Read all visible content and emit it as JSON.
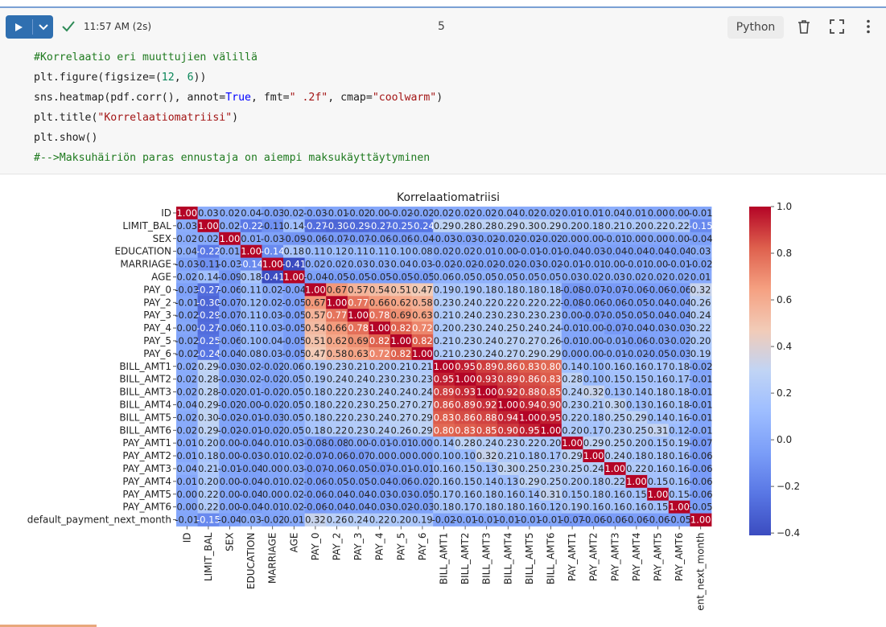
{
  "toolbar": {
    "run_icon": "play-icon",
    "chevron_icon": "chevron-down-icon",
    "status_icon": "check-icon",
    "status_time": "11:57 AM (2s)",
    "cell_number": "5",
    "language": "Python",
    "delete_icon": "trash-icon",
    "expand_icon": "expand-icon",
    "menu_icon": "more-vertical-icon"
  },
  "code": {
    "lines": [
      "#Korrelaatio eri muuttujien välillä",
      "plt.figure(figsize=(12, 6))",
      "sns.heatmap(pdf.corr(), annot=True, fmt=\" .2f\", cmap=\"coolwarm\")",
      "plt.title(\"Korrelaatiomatriisi\")",
      "plt.show()",
      "#-->Maksuhäiriön paras ennustaja on aiempi maksukäyttäytyminen"
    ]
  },
  "colors": {
    "run_button": "#2f6fb0",
    "check": "#2e8b57",
    "cmap_low": "#3b4cc0",
    "cmap_mid": "#dddddd",
    "cmap_high": "#b40426"
  },
  "chart_data": {
    "type": "heatmap",
    "title": "Korrelaatiomatriisi",
    "labels": [
      "ID",
      "LIMIT_BAL",
      "SEX",
      "EDUCATION",
      "MARRIAGE",
      "AGE",
      "PAY_0",
      "PAY_2",
      "PAY_3",
      "PAY_4",
      "PAY_5",
      "PAY_6",
      "BILL_AMT1",
      "BILL_AMT2",
      "BILL_AMT3",
      "BILL_AMT4",
      "BILL_AMT5",
      "BILL_AMT6",
      "PAY_AMT1",
      "PAY_AMT2",
      "PAY_AMT3",
      "PAY_AMT4",
      "PAY_AMT5",
      "PAY_AMT6",
      "default_payment_next_month"
    ],
    "x_tick_labels": [
      "ID",
      "LIMIT_BAL",
      "SEX",
      "EDUCATION",
      "MARRIAGE",
      "AGE",
      "PAY_0",
      "PAY_2",
      "PAY_3",
      "PAY_4",
      "PAY_5",
      "PAY_6",
      "BILL_AMT1",
      "BILL_AMT2",
      "BILL_AMT3",
      "BILL_AMT4",
      "BILL_AMT5",
      "BILL_AMT6",
      "PAY_AMT1",
      "PAY_AMT2",
      "PAY_AMT3",
      "PAY_AMT4",
      "PAY_AMT5",
      "PAY_AMT6",
      "ent_next_month"
    ],
    "colorbar_ticks": [
      1.0,
      0.8,
      0.6,
      0.4,
      0.2,
      0.0,
      -0.2,
      -0.4
    ],
    "colorbar_tick_labels": [
      "1.0",
      "0.8",
      "0.6",
      "0.4",
      "0.2",
      "0.0",
      "−0.2",
      "−0.4"
    ],
    "vmin": -0.41,
    "vmax": 1.0,
    "cmap": "coolwarm",
    "values": [
      [
        1.0,
        0.03,
        0.02,
        0.04,
        -0.03,
        0.02,
        -0.03,
        -0.01,
        -0.02,
        -0.0,
        -0.02,
        -0.02,
        0.02,
        0.02,
        0.02,
        0.04,
        0.02,
        0.02,
        0.01,
        0.01,
        0.04,
        0.01,
        0.0,
        0.0,
        -0.01
      ],
      [
        0.03,
        1.0,
        0.02,
        -0.22,
        -0.11,
        0.14,
        -0.27,
        -0.3,
        -0.29,
        -0.27,
        -0.25,
        -0.24,
        0.29,
        0.28,
        0.28,
        0.29,
        0.3,
        0.29,
        0.2,
        0.18,
        0.21,
        0.2,
        0.22,
        0.22,
        -0.15
      ],
      [
        0.02,
        0.02,
        1.0,
        0.01,
        -0.03,
        -0.09,
        -0.06,
        -0.07,
        -0.07,
        -0.06,
        -0.06,
        -0.04,
        -0.03,
        -0.03,
        -0.02,
        -0.02,
        -0.02,
        -0.02,
        -0.0,
        -0.0,
        -0.01,
        -0.0,
        -0.0,
        -0.0,
        -0.04
      ],
      [
        0.04,
        -0.22,
        0.01,
        1.0,
        -0.14,
        0.18,
        0.11,
        0.12,
        0.11,
        0.11,
        0.1,
        0.08,
        0.02,
        0.02,
        0.01,
        0.0,
        -0.01,
        -0.01,
        -0.04,
        -0.03,
        -0.04,
        -0.04,
        -0.04,
        -0.04,
        0.03
      ],
      [
        -0.03,
        -0.11,
        -0.03,
        -0.14,
        1.0,
        -0.41,
        0.02,
        0.02,
        0.03,
        0.03,
        0.04,
        0.03,
        -0.02,
        -0.02,
        -0.02,
        -0.02,
        -0.03,
        -0.02,
        -0.01,
        -0.01,
        -0.0,
        -0.01,
        -0.0,
        -0.01,
        -0.02
      ],
      [
        0.02,
        0.14,
        -0.09,
        0.18,
        -0.41,
        1.0,
        -0.04,
        -0.05,
        -0.05,
        -0.05,
        -0.05,
        -0.05,
        0.06,
        0.05,
        0.05,
        0.05,
        0.05,
        0.05,
        0.03,
        0.02,
        0.03,
        0.02,
        0.02,
        0.02,
        0.01
      ],
      [
        -0.03,
        -0.27,
        -0.06,
        0.11,
        0.02,
        -0.04,
        1.0,
        0.67,
        0.57,
        0.54,
        0.51,
        0.47,
        0.19,
        0.19,
        0.18,
        0.18,
        0.18,
        0.18,
        -0.08,
        -0.07,
        -0.07,
        -0.06,
        -0.06,
        -0.06,
        0.32
      ],
      [
        -0.01,
        -0.3,
        -0.07,
        0.12,
        0.02,
        -0.05,
        0.67,
        1.0,
        0.77,
        0.66,
        0.62,
        0.58,
        0.23,
        0.24,
        0.22,
        0.22,
        0.22,
        0.22,
        -0.08,
        -0.06,
        -0.06,
        -0.05,
        -0.04,
        -0.04,
        0.26
      ],
      [
        -0.02,
        -0.29,
        -0.07,
        0.11,
        0.03,
        -0.05,
        0.57,
        0.77,
        1.0,
        0.78,
        0.69,
        0.63,
        0.21,
        0.24,
        0.23,
        0.23,
        0.23,
        0.23,
        0.0,
        -0.07,
        -0.05,
        -0.05,
        -0.04,
        -0.04,
        0.24
      ],
      [
        -0.0,
        -0.27,
        -0.06,
        0.11,
        0.03,
        -0.05,
        0.54,
        0.66,
        0.78,
        1.0,
        0.82,
        0.72,
        0.2,
        0.23,
        0.24,
        0.25,
        0.24,
        0.24,
        -0.01,
        -0.0,
        -0.07,
        -0.04,
        -0.03,
        -0.03,
        0.22
      ],
      [
        -0.02,
        -0.25,
        -0.06,
        0.1,
        0.04,
        -0.05,
        0.51,
        0.62,
        0.69,
        0.82,
        1.0,
        0.82,
        0.21,
        0.23,
        0.24,
        0.27,
        0.27,
        0.26,
        -0.01,
        -0.0,
        -0.01,
        -0.06,
        -0.03,
        -0.02,
        0.2
      ],
      [
        -0.02,
        -0.24,
        -0.04,
        0.08,
        0.03,
        -0.05,
        0.47,
        0.58,
        0.63,
        0.72,
        0.82,
        1.0,
        0.21,
        0.23,
        0.24,
        0.27,
        0.29,
        0.29,
        -0.0,
        -0.0,
        -0.01,
        -0.02,
        -0.05,
        -0.03,
        0.19
      ],
      [
        0.02,
        0.29,
        -0.03,
        0.02,
        -0.02,
        0.06,
        0.19,
        0.23,
        0.21,
        0.2,
        0.21,
        0.21,
        1.0,
        0.95,
        0.89,
        0.86,
        0.83,
        0.8,
        0.14,
        0.1,
        0.16,
        0.16,
        0.17,
        0.18,
        -0.02
      ],
      [
        0.02,
        0.28,
        -0.03,
        0.02,
        -0.02,
        0.05,
        0.19,
        0.24,
        0.24,
        0.23,
        0.23,
        0.23,
        0.95,
        1.0,
        0.93,
        0.89,
        0.86,
        0.83,
        0.28,
        0.1,
        0.15,
        0.15,
        0.16,
        0.17,
        -0.01
      ],
      [
        0.02,
        0.28,
        -0.02,
        0.01,
        -0.02,
        0.05,
        0.18,
        0.22,
        0.23,
        0.24,
        0.24,
        0.24,
        0.89,
        0.93,
        1.0,
        0.92,
        0.88,
        0.85,
        0.24,
        0.32,
        0.13,
        0.14,
        0.18,
        0.18,
        -0.01
      ],
      [
        0.04,
        0.29,
        -0.02,
        0.0,
        -0.02,
        0.05,
        0.18,
        0.22,
        0.23,
        0.25,
        0.27,
        0.27,
        0.86,
        0.89,
        0.92,
        1.0,
        0.94,
        0.9,
        0.23,
        0.21,
        0.3,
        0.13,
        0.16,
        0.18,
        -0.01
      ],
      [
        0.02,
        0.3,
        -0.02,
        -0.01,
        -0.03,
        0.05,
        0.18,
        0.22,
        0.23,
        0.24,
        0.27,
        0.29,
        0.83,
        0.86,
        0.88,
        0.94,
        1.0,
        0.95,
        0.22,
        0.18,
        0.25,
        0.29,
        0.14,
        0.16,
        -0.01
      ],
      [
        0.02,
        0.29,
        -0.02,
        -0.01,
        -0.02,
        0.05,
        0.18,
        0.22,
        0.23,
        0.24,
        0.26,
        0.29,
        0.8,
        0.83,
        0.85,
        0.9,
        0.95,
        1.0,
        0.2,
        0.17,
        0.23,
        0.25,
        0.31,
        0.12,
        -0.01
      ],
      [
        0.01,
        0.2,
        -0.0,
        -0.04,
        -0.01,
        0.03,
        -0.08,
        -0.08,
        0.0,
        -0.01,
        -0.01,
        -0.0,
        0.14,
        0.28,
        0.24,
        0.23,
        0.22,
        0.2,
        1.0,
        0.29,
        0.25,
        0.2,
        0.15,
        0.19,
        -0.07
      ],
      [
        0.01,
        0.18,
        -0.0,
        -0.03,
        -0.01,
        0.02,
        -0.07,
        -0.06,
        -0.07,
        -0.0,
        -0.0,
        -0.0,
        0.1,
        0.1,
        0.32,
        0.21,
        0.18,
        0.17,
        0.29,
        1.0,
        0.24,
        0.18,
        0.18,
        0.16,
        -0.06
      ],
      [
        0.04,
        0.21,
        -0.01,
        -0.04,
        -0.0,
        0.03,
        -0.07,
        -0.06,
        -0.05,
        -0.07,
        -0.01,
        -0.01,
        0.16,
        0.15,
        0.13,
        0.3,
        0.25,
        0.23,
        0.25,
        0.24,
        1.0,
        0.22,
        0.16,
        0.16,
        -0.06
      ],
      [
        0.01,
        0.2,
        -0.0,
        -0.04,
        -0.01,
        0.02,
        -0.06,
        -0.05,
        -0.05,
        -0.04,
        -0.06,
        -0.02,
        0.16,
        0.15,
        0.14,
        0.13,
        0.29,
        0.25,
        0.2,
        0.18,
        0.22,
        1.0,
        0.15,
        0.16,
        -0.06
      ],
      [
        0.0,
        0.22,
        -0.0,
        -0.04,
        -0.0,
        0.02,
        -0.06,
        -0.04,
        -0.04,
        -0.03,
        -0.03,
        -0.05,
        0.17,
        0.16,
        0.18,
        0.16,
        0.14,
        0.31,
        0.15,
        0.18,
        0.16,
        0.15,
        1.0,
        0.15,
        -0.06
      ],
      [
        0.0,
        0.22,
        -0.0,
        -0.04,
        -0.01,
        0.02,
        -0.06,
        -0.04,
        -0.04,
        -0.03,
        -0.02,
        -0.03,
        0.18,
        0.17,
        0.18,
        0.18,
        0.16,
        0.12,
        0.19,
        0.16,
        0.16,
        0.16,
        0.15,
        1.0,
        -0.05
      ],
      [
        -0.01,
        -0.15,
        -0.04,
        0.03,
        -0.02,
        0.01,
        0.32,
        0.26,
        0.24,
        0.22,
        0.2,
        0.19,
        -0.02,
        -0.01,
        -0.01,
        -0.01,
        -0.01,
        -0.01,
        -0.07,
        -0.06,
        -0.06,
        -0.06,
        -0.06,
        -0.05,
        1.0
      ]
    ]
  }
}
